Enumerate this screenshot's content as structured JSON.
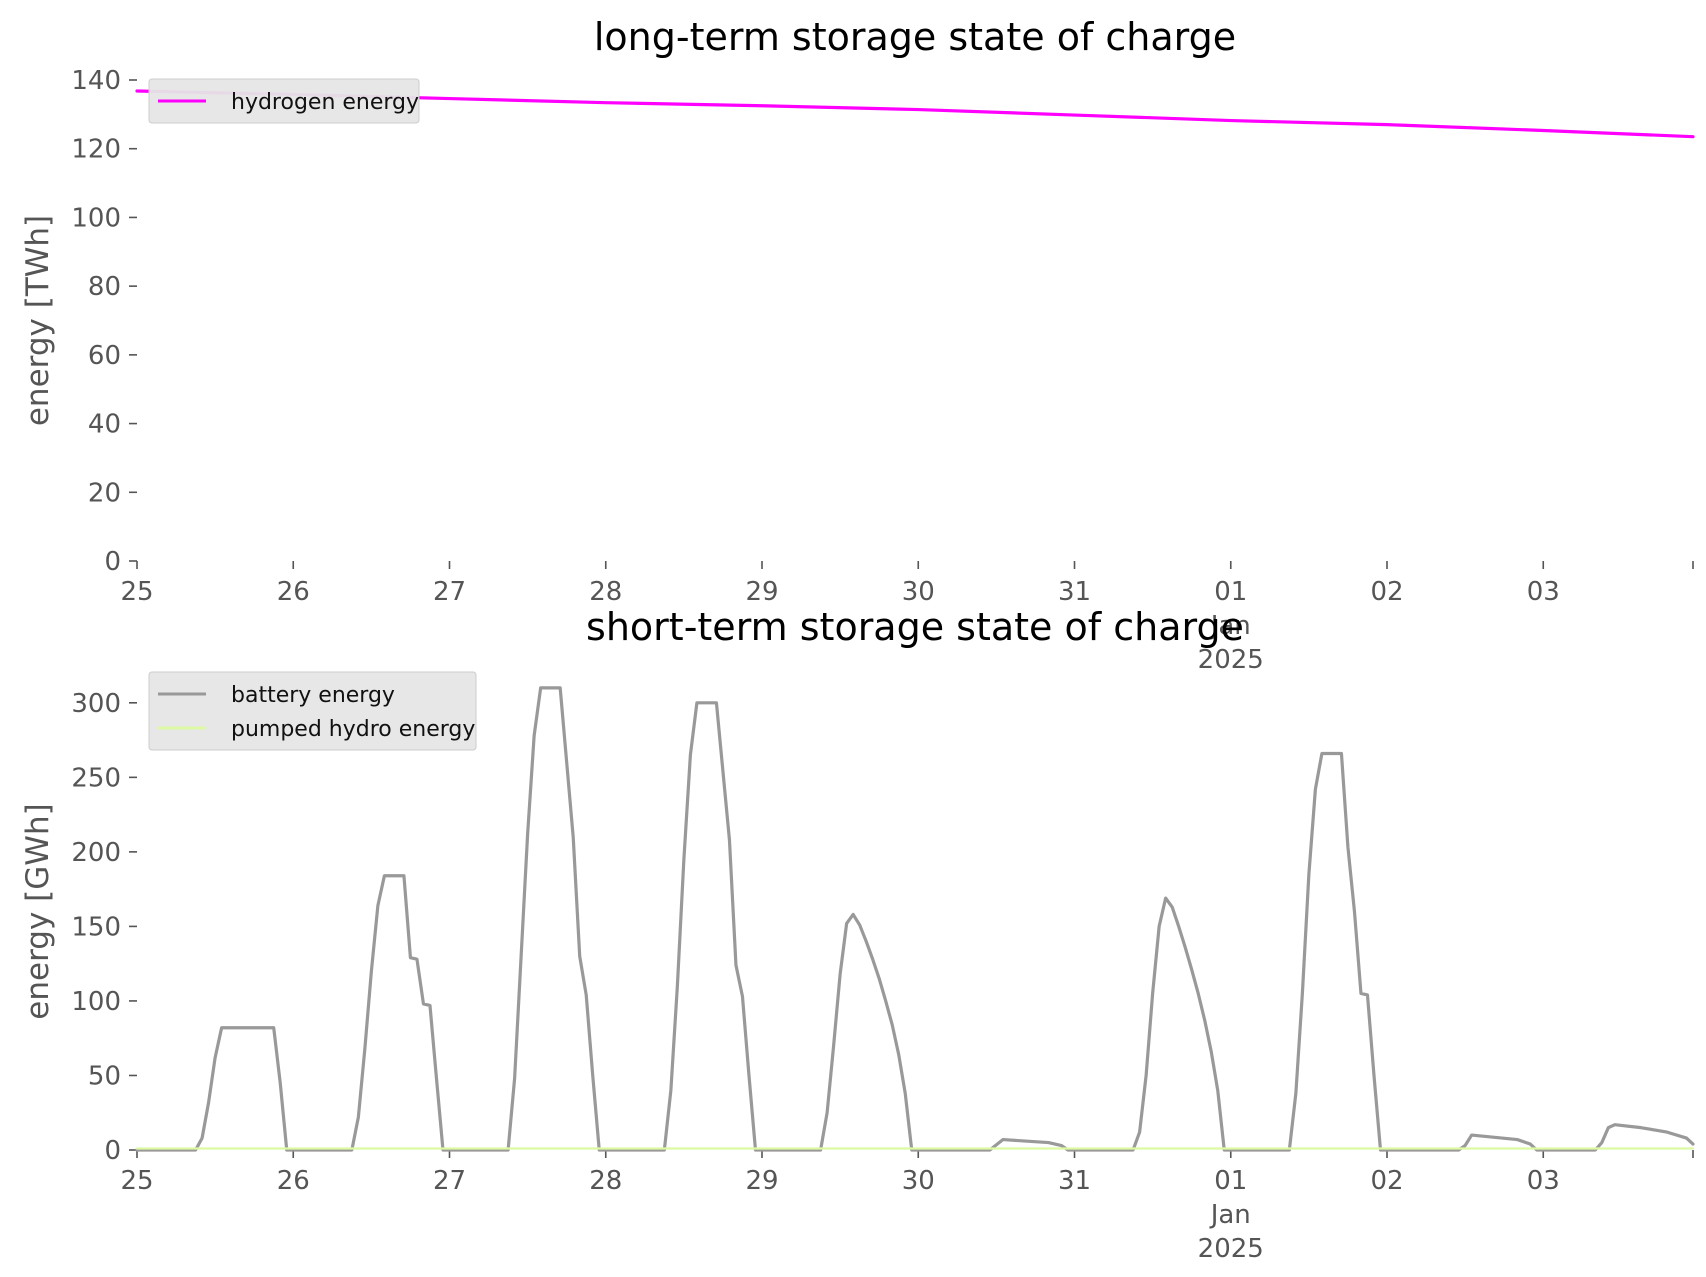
{
  "chart_data": [
    {
      "type": "line",
      "title": "long-term storage state of charge",
      "xlabel": "",
      "ylabel": "energy [TWh]",
      "xlim": [
        "2024-12-25 00:00",
        "2025-01-03 23:00"
      ],
      "ylim": [
        0,
        140
      ],
      "yticks": [
        0,
        20,
        40,
        60,
        80,
        100,
        120,
        140
      ],
      "xtick_labels": [
        {
          "date": "2024-12-25",
          "lines": [
            "25"
          ]
        },
        {
          "date": "2024-12-26",
          "lines": [
            "26"
          ]
        },
        {
          "date": "2024-12-27",
          "lines": [
            "27"
          ]
        },
        {
          "date": "2024-12-28",
          "lines": [
            "28"
          ]
        },
        {
          "date": "2024-12-29",
          "lines": [
            "29"
          ]
        },
        {
          "date": "2024-12-30",
          "lines": [
            "30"
          ]
        },
        {
          "date": "2024-12-31",
          "lines": [
            "31"
          ]
        },
        {
          "date": "2025-01-01",
          "lines": [
            "01",
            "Jan",
            "2025"
          ]
        },
        {
          "date": "2025-01-02",
          "lines": [
            "02"
          ]
        },
        {
          "date": "2025-01-03",
          "lines": [
            "03"
          ]
        }
      ],
      "grid": false,
      "legend_position": "top-left",
      "series": [
        {
          "name": "hydrogen energy",
          "color": "#ff00ff",
          "points": [
            [
              "2024-12-25 00:00",
              136.8
            ],
            [
              "2024-12-26 00:00",
              135.8
            ],
            [
              "2024-12-27 00:00",
              134.6
            ],
            [
              "2024-12-28 00:00",
              133.4
            ],
            [
              "2024-12-29 00:00",
              132.5
            ],
            [
              "2024-12-30 00:00",
              131.4
            ],
            [
              "2024-12-31 00:00",
              129.8
            ],
            [
              "2025-01-01 00:00",
              128.2
            ],
            [
              "2025-01-02 00:00",
              127.0
            ],
            [
              "2025-01-03 00:00",
              125.3
            ],
            [
              "2025-01-03 23:00",
              123.5
            ]
          ]
        }
      ]
    },
    {
      "type": "line",
      "title": "short-term storage state of charge",
      "xlabel": "",
      "ylabel": "energy [GWh]",
      "xlim": [
        "2024-12-25 00:00",
        "2025-01-03 23:00"
      ],
      "ylim": [
        0,
        320
      ],
      "yticks": [
        0,
        50,
        100,
        150,
        200,
        250,
        300
      ],
      "xtick_labels": [
        {
          "date": "2024-12-25",
          "lines": [
            "25"
          ]
        },
        {
          "date": "2024-12-26",
          "lines": [
            "26"
          ]
        },
        {
          "date": "2024-12-27",
          "lines": [
            "27"
          ]
        },
        {
          "date": "2024-12-28",
          "lines": [
            "28"
          ]
        },
        {
          "date": "2024-12-29",
          "lines": [
            "29"
          ]
        },
        {
          "date": "2024-12-30",
          "lines": [
            "30"
          ]
        },
        {
          "date": "2024-12-31",
          "lines": [
            "31"
          ]
        },
        {
          "date": "2025-01-01",
          "lines": [
            "01",
            "Jan",
            "2025"
          ]
        },
        {
          "date": "2025-01-02",
          "lines": [
            "02"
          ]
        },
        {
          "date": "2025-01-03",
          "lines": [
            "03"
          ]
        }
      ],
      "grid": false,
      "legend_position": "top-left",
      "series": [
        {
          "name": "battery energy",
          "color": "#999999",
          "points": [
            [
              "2024-12-25 00:00",
              0
            ],
            [
              "2024-12-25 09:00",
              0
            ],
            [
              "2024-12-25 10:00",
              8
            ],
            [
              "2024-12-25 11:00",
              32
            ],
            [
              "2024-12-25 12:00",
              62
            ],
            [
              "2024-12-25 13:00",
              82
            ],
            [
              "2024-12-25 21:00",
              82
            ],
            [
              "2024-12-25 22:00",
              45
            ],
            [
              "2024-12-25 23:00",
              0
            ],
            [
              "2024-12-26 09:00",
              0
            ],
            [
              "2024-12-26 10:00",
              22
            ],
            [
              "2024-12-26 11:00",
              68
            ],
            [
              "2024-12-26 12:00",
              120
            ],
            [
              "2024-12-26 13:00",
              164
            ],
            [
              "2024-12-26 14:00",
              184
            ],
            [
              "2024-12-26 17:00",
              184
            ],
            [
              "2024-12-26 18:00",
              129
            ],
            [
              "2024-12-26 19:00",
              128
            ],
            [
              "2024-12-26 20:00",
              98
            ],
            [
              "2024-12-26 21:00",
              97
            ],
            [
              "2024-12-26 22:00",
              48
            ],
            [
              "2024-12-26 23:00",
              0
            ],
            [
              "2024-12-27 09:00",
              0
            ],
            [
              "2024-12-27 10:00",
              48
            ],
            [
              "2024-12-27 11:00",
              130
            ],
            [
              "2024-12-27 12:00",
              212
            ],
            [
              "2024-12-27 13:00",
              278
            ],
            [
              "2024-12-27 14:00",
              310
            ],
            [
              "2024-12-27 17:00",
              310
            ],
            [
              "2024-12-27 19:00",
              210
            ],
            [
              "2024-12-27 20:00",
              130
            ],
            [
              "2024-12-27 21:00",
              104
            ],
            [
              "2024-12-27 22:00",
              50
            ],
            [
              "2024-12-27 23:00",
              0
            ],
            [
              "2024-12-28 09:00",
              0
            ],
            [
              "2024-12-28 10:00",
              40
            ],
            [
              "2024-12-28 11:00",
              110
            ],
            [
              "2024-12-28 12:00",
              195
            ],
            [
              "2024-12-28 13:00",
              265
            ],
            [
              "2024-12-28 14:00",
              300
            ],
            [
              "2024-12-28 17:00",
              300
            ],
            [
              "2024-12-28 19:00",
              208
            ],
            [
              "2024-12-28 20:00",
              124
            ],
            [
              "2024-12-28 21:00",
              103
            ],
            [
              "2024-12-28 22:00",
              50
            ],
            [
              "2024-12-28 23:00",
              0
            ],
            [
              "2024-12-29 09:00",
              0
            ],
            [
              "2024-12-29 10:00",
              25
            ],
            [
              "2024-12-29 11:00",
              70
            ],
            [
              "2024-12-29 12:00",
              118
            ],
            [
              "2024-12-29 13:00",
              152
            ],
            [
              "2024-12-29 14:00",
              158
            ],
            [
              "2024-12-29 15:00",
              151
            ],
            [
              "2024-12-29 16:00",
              140
            ],
            [
              "2024-12-29 17:00",
              128
            ],
            [
              "2024-12-29 18:00",
              115
            ],
            [
              "2024-12-29 19:00",
              100
            ],
            [
              "2024-12-29 20:00",
              84
            ],
            [
              "2024-12-29 21:00",
              64
            ],
            [
              "2024-12-29 22:00",
              38
            ],
            [
              "2024-12-29 23:00",
              0
            ],
            [
              "2024-12-30 11:00",
              0
            ],
            [
              "2024-12-30 13:00",
              7
            ],
            [
              "2024-12-30 20:00",
              5
            ],
            [
              "2024-12-30 22:00",
              3
            ],
            [
              "2024-12-30 23:00",
              0
            ],
            [
              "2024-12-31 09:00",
              0
            ],
            [
              "2024-12-31 10:00",
              12
            ],
            [
              "2024-12-31 11:00",
              50
            ],
            [
              "2024-12-31 12:00",
              105
            ],
            [
              "2024-12-31 13:00",
              150
            ],
            [
              "2024-12-31 14:00",
              169
            ],
            [
              "2024-12-31 15:00",
              163
            ],
            [
              "2024-12-31 16:00",
              150
            ],
            [
              "2024-12-31 17:00",
              136
            ],
            [
              "2024-12-31 18:00",
              121
            ],
            [
              "2024-12-31 19:00",
              105
            ],
            [
              "2024-12-31 20:00",
              87
            ],
            [
              "2024-12-31 21:00",
              66
            ],
            [
              "2024-12-31 22:00",
              40
            ],
            [
              "2024-12-31 23:00",
              0
            ],
            [
              "2025-01-01 09:00",
              0
            ],
            [
              "2025-01-01 10:00",
              38
            ],
            [
              "2025-01-01 11:00",
              105
            ],
            [
              "2025-01-01 12:00",
              185
            ],
            [
              "2025-01-01 13:00",
              242
            ],
            [
              "2025-01-01 14:00",
              266
            ],
            [
              "2025-01-01 17:00",
              266
            ],
            [
              "2025-01-01 18:00",
              203
            ],
            [
              "2025-01-01 19:00",
              160
            ],
            [
              "2025-01-01 20:00",
              105
            ],
            [
              "2025-01-01 21:00",
              104
            ],
            [
              "2025-01-01 22:00",
              50
            ],
            [
              "2025-01-01 23:00",
              0
            ],
            [
              "2025-01-02 11:00",
              0
            ],
            [
              "2025-01-02 12:00",
              3
            ],
            [
              "2025-01-02 13:00",
              10
            ],
            [
              "2025-01-02 20:00",
              7
            ],
            [
              "2025-01-02 22:00",
              4
            ],
            [
              "2025-01-02 23:00",
              0
            ],
            [
              "2025-01-03 08:00",
              0
            ],
            [
              "2025-01-03 09:00",
              5
            ],
            [
              "2025-01-03 10:00",
              15
            ],
            [
              "2025-01-03 11:00",
              17
            ],
            [
              "2025-01-03 15:00",
              15
            ],
            [
              "2025-01-03 19:00",
              12
            ],
            [
              "2025-01-03 22:00",
              8
            ],
            [
              "2025-01-03 23:00",
              4
            ]
          ]
        },
        {
          "name": "pumped hydro energy",
          "color": "#ddf9a3",
          "points": [
            [
              "2024-12-25 00:00",
              1
            ],
            [
              "2025-01-03 23:00",
              1
            ]
          ]
        }
      ]
    }
  ]
}
